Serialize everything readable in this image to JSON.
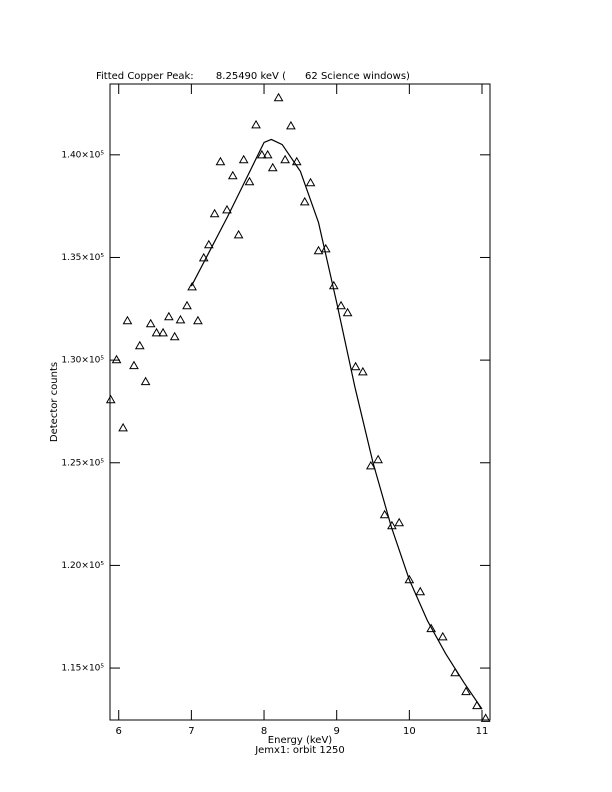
{
  "chart_data": {
    "type": "scatter",
    "title": "Fitted Copper Peak:       8.25490 keV (      62 Science windows)",
    "x_label": "Energy (keV)",
    "subtitle": "Jemx1: orbit 1250",
    "y_label": "Detector counts",
    "xlim": [
      5.88,
      11.11
    ],
    "ylim": [
      112470,
      143450
    ],
    "xticks": [
      6,
      7,
      8,
      9,
      10,
      11
    ],
    "yticks": [
      {
        "value": 115000,
        "label": "1.15×10⁵"
      },
      {
        "value": 120000,
        "label": "1.20×10⁵"
      },
      {
        "value": 125000,
        "label": "1.25×10⁵"
      },
      {
        "value": 130000,
        "label": "1.30×10⁵"
      },
      {
        "value": 135000,
        "label": "1.35×10⁵"
      },
      {
        "value": 140000,
        "label": "1.40×10⁵"
      }
    ],
    "series": [
      {
        "color": "#000000",
        "marker": "triangle",
        "x": [
          5.89,
          5.97,
          6.06,
          6.12,
          6.21,
          6.29,
          6.37,
          6.44,
          6.52,
          6.61,
          6.69,
          6.77,
          6.85,
          6.94,
          7.01,
          7.09,
          7.17,
          7.24,
          7.32,
          7.4,
          7.49,
          7.57,
          7.65,
          7.72,
          7.8,
          7.89,
          7.97,
          8.05,
          8.12,
          8.2,
          8.29,
          8.37,
          8.45,
          8.56,
          8.64,
          8.75,
          8.85,
          8.96,
          9.06,
          9.15,
          9.26,
          9.36,
          9.47,
          9.57,
          9.66,
          9.76,
          9.86,
          10.0,
          10.15,
          10.3,
          10.46,
          10.63,
          10.78,
          10.93,
          11.05
        ],
        "values": [
          128070,
          130020,
          126700,
          131920,
          129730,
          130700,
          128950,
          131770,
          131330,
          131330,
          132110,
          131140,
          131960,
          132650,
          133570,
          131920,
          134980,
          135620,
          137130,
          139660,
          137320,
          138980,
          136100,
          139760,
          138690,
          141460,
          140000,
          140000,
          139370,
          142780,
          139760,
          141410,
          139660,
          137710,
          138640,
          135330,
          135420,
          133620,
          132650,
          132310,
          129680,
          129430,
          124850,
          125150,
          122470,
          121930,
          122080,
          119300,
          118720,
          116920,
          116520,
          114770,
          113850,
          113170,
          112550
        ]
      },
      {
        "color": "#000000",
        "marker": "line",
        "x": [
          7.0,
          7.25,
          7.5,
          7.75,
          8.0,
          8.1,
          8.25,
          8.5,
          8.75,
          9.0,
          9.25,
          9.5,
          9.75,
          10.0,
          10.25,
          10.5,
          10.75,
          11.0
        ],
        "values": [
          133600,
          135300,
          137000,
          138800,
          140600,
          140750,
          140500,
          139200,
          136700,
          132800,
          128700,
          125000,
          121900,
          119300,
          117300,
          115700,
          114300,
          113000
        ]
      }
    ]
  }
}
